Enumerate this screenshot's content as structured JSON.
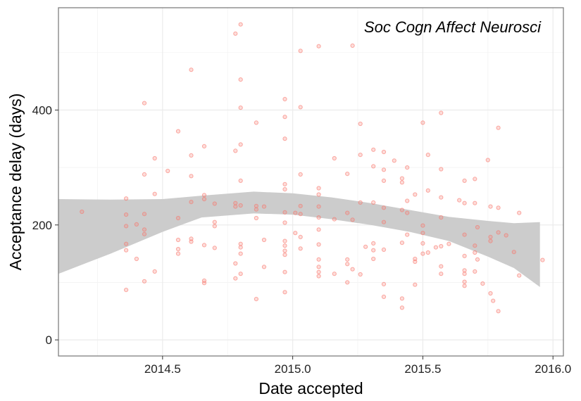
{
  "chart_data": {
    "type": "scatter",
    "title": "",
    "annotation": "Soc Cogn Affect Neurosci",
    "xlabel": "Date accepted",
    "ylabel": "Acceptance delay (days)",
    "xlim": [
      2014.1,
      2016.04
    ],
    "ylim": [
      -28,
      578
    ],
    "x_ticks": [
      2014.5,
      2015.0,
      2015.5,
      2016.0
    ],
    "x_tick_labels": [
      "2014.5",
      "2015.0",
      "2015.5",
      "2016.0"
    ],
    "y_ticks": [
      0,
      200,
      400
    ],
    "y_tick_labels": [
      "0",
      "200",
      "400"
    ],
    "grid": true,
    "point_color": "#F8766D",
    "band_color": "#cccccc",
    "points": [
      [
        2014.19,
        223
      ],
      [
        2014.36,
        246
      ],
      [
        2014.36,
        218
      ],
      [
        2014.36,
        198
      ],
      [
        2014.36,
        167
      ],
      [
        2014.36,
        156
      ],
      [
        2014.36,
        87
      ],
      [
        2014.4,
        201
      ],
      [
        2014.4,
        141
      ],
      [
        2014.43,
        412
      ],
      [
        2014.43,
        288
      ],
      [
        2014.43,
        219
      ],
      [
        2014.43,
        192
      ],
      [
        2014.43,
        184
      ],
      [
        2014.43,
        102
      ],
      [
        2014.47,
        316
      ],
      [
        2014.47,
        254
      ],
      [
        2014.47,
        119
      ],
      [
        2014.52,
        294
      ],
      [
        2014.56,
        363
      ],
      [
        2014.56,
        212
      ],
      [
        2014.56,
        174
      ],
      [
        2014.56,
        158
      ],
      [
        2014.56,
        150
      ],
      [
        2014.61,
        470
      ],
      [
        2014.61,
        321
      ],
      [
        2014.61,
        285
      ],
      [
        2014.61,
        240
      ],
      [
        2014.61,
        176
      ],
      [
        2014.61,
        171
      ],
      [
        2014.66,
        337
      ],
      [
        2014.66,
        252
      ],
      [
        2014.66,
        245
      ],
      [
        2014.66,
        165
      ],
      [
        2014.66,
        103
      ],
      [
        2014.66,
        99
      ],
      [
        2014.7,
        237
      ],
      [
        2014.7,
        205
      ],
      [
        2014.7,
        198
      ],
      [
        2014.7,
        160
      ],
      [
        2014.78,
        533
      ],
      [
        2014.78,
        329
      ],
      [
        2014.78,
        238
      ],
      [
        2014.78,
        232
      ],
      [
        2014.78,
        133
      ],
      [
        2014.78,
        107
      ],
      [
        2014.8,
        549
      ],
      [
        2014.8,
        453
      ],
      [
        2014.8,
        404
      ],
      [
        2014.8,
        340
      ],
      [
        2014.8,
        277
      ],
      [
        2014.8,
        234
      ],
      [
        2014.8,
        167
      ],
      [
        2014.8,
        161
      ],
      [
        2014.8,
        150
      ],
      [
        2014.8,
        115
      ],
      [
        2014.86,
        378
      ],
      [
        2014.86,
        233
      ],
      [
        2014.86,
        227
      ],
      [
        2014.86,
        212
      ],
      [
        2014.86,
        71
      ],
      [
        2014.89,
        232
      ],
      [
        2014.89,
        174
      ],
      [
        2014.89,
        127
      ],
      [
        2014.97,
        419
      ],
      [
        2014.97,
        388
      ],
      [
        2014.97,
        350
      ],
      [
        2014.97,
        271
      ],
      [
        2014.97,
        262
      ],
      [
        2014.97,
        222
      ],
      [
        2014.97,
        204
      ],
      [
        2014.97,
        172
      ],
      [
        2014.97,
        164
      ],
      [
        2014.97,
        155
      ],
      [
        2014.97,
        148
      ],
      [
        2014.97,
        118
      ],
      [
        2014.97,
        83
      ],
      [
        2015.01,
        221
      ],
      [
        2015.01,
        186
      ],
      [
        2015.03,
        503
      ],
      [
        2015.03,
        405
      ],
      [
        2015.03,
        288
      ],
      [
        2015.03,
        233
      ],
      [
        2015.03,
        219
      ],
      [
        2015.03,
        179
      ],
      [
        2015.03,
        159
      ],
      [
        2015.1,
        511
      ],
      [
        2015.1,
        264
      ],
      [
        2015.1,
        253
      ],
      [
        2015.1,
        232
      ],
      [
        2015.1,
        213
      ],
      [
        2015.1,
        192
      ],
      [
        2015.1,
        166
      ],
      [
        2015.1,
        140
      ],
      [
        2015.1,
        127
      ],
      [
        2015.1,
        118
      ],
      [
        2015.1,
        111
      ],
      [
        2015.16,
        316
      ],
      [
        2015.16,
        210
      ],
      [
        2015.16,
        115
      ],
      [
        2015.21,
        289
      ],
      [
        2015.21,
        221
      ],
      [
        2015.21,
        140
      ],
      [
        2015.21,
        132
      ],
      [
        2015.21,
        100
      ],
      [
        2015.23,
        512
      ],
      [
        2015.23,
        209
      ],
      [
        2015.23,
        123
      ],
      [
        2015.26,
        376
      ],
      [
        2015.26,
        322
      ],
      [
        2015.26,
        239
      ],
      [
        2015.26,
        114
      ],
      [
        2015.28,
        162
      ],
      [
        2015.31,
        331
      ],
      [
        2015.31,
        302
      ],
      [
        2015.31,
        239
      ],
      [
        2015.31,
        168
      ],
      [
        2015.31,
        156
      ],
      [
        2015.31,
        141
      ],
      [
        2015.35,
        327
      ],
      [
        2015.35,
        296
      ],
      [
        2015.35,
        277
      ],
      [
        2015.35,
        230
      ],
      [
        2015.35,
        205
      ],
      [
        2015.35,
        157
      ],
      [
        2015.35,
        97
      ],
      [
        2015.35,
        75
      ],
      [
        2015.39,
        312
      ],
      [
        2015.42,
        281
      ],
      [
        2015.42,
        274
      ],
      [
        2015.42,
        226
      ],
      [
        2015.42,
        169
      ],
      [
        2015.42,
        72
      ],
      [
        2015.42,
        56
      ],
      [
        2015.44,
        300
      ],
      [
        2015.44,
        242
      ],
      [
        2015.44,
        221
      ],
      [
        2015.44,
        183
      ],
      [
        2015.47,
        253
      ],
      [
        2015.47,
        141
      ],
      [
        2015.47,
        136
      ],
      [
        2015.47,
        96
      ],
      [
        2015.5,
        378
      ],
      [
        2015.5,
        199
      ],
      [
        2015.5,
        186
      ],
      [
        2015.5,
        168
      ],
      [
        2015.5,
        150
      ],
      [
        2015.52,
        322
      ],
      [
        2015.52,
        260
      ],
      [
        2015.52,
        152
      ],
      [
        2015.55,
        161
      ],
      [
        2015.57,
        395
      ],
      [
        2015.57,
        297
      ],
      [
        2015.57,
        248
      ],
      [
        2015.57,
        213
      ],
      [
        2015.57,
        163
      ],
      [
        2015.57,
        128
      ],
      [
        2015.57,
        115
      ],
      [
        2015.6,
        167
      ],
      [
        2015.64,
        243
      ],
      [
        2015.66,
        277
      ],
      [
        2015.66,
        238
      ],
      [
        2015.66,
        183
      ],
      [
        2015.66,
        146
      ],
      [
        2015.66,
        121
      ],
      [
        2015.66,
        115
      ],
      [
        2015.66,
        101
      ],
      [
        2015.66,
        94
      ],
      [
        2015.7,
        280
      ],
      [
        2015.7,
        238
      ],
      [
        2015.7,
        164
      ],
      [
        2015.7,
        152
      ],
      [
        2015.7,
        119
      ],
      [
        2015.71,
        140
      ],
      [
        2015.71,
        196
      ],
      [
        2015.73,
        98
      ],
      [
        2015.75,
        313
      ],
      [
        2015.76,
        232
      ],
      [
        2015.76,
        179
      ],
      [
        2015.76,
        172
      ],
      [
        2015.76,
        81
      ],
      [
        2015.77,
        68
      ],
      [
        2015.79,
        369
      ],
      [
        2015.79,
        230
      ],
      [
        2015.79,
        187
      ],
      [
        2015.79,
        50
      ],
      [
        2015.82,
        182
      ],
      [
        2015.85,
        153
      ],
      [
        2015.87,
        221
      ],
      [
        2015.87,
        112
      ],
      [
        2015.96,
        139
      ]
    ],
    "smooth_band": [
      {
        "x": 2014.1,
        "lower": 115,
        "upper": 245
      },
      {
        "x": 2014.3,
        "lower": 150,
        "upper": 244
      },
      {
        "x": 2014.5,
        "lower": 188,
        "upper": 245
      },
      {
        "x": 2014.65,
        "lower": 213,
        "upper": 251
      },
      {
        "x": 2014.85,
        "lower": 220,
        "upper": 258
      },
      {
        "x": 2015.0,
        "lower": 218,
        "upper": 255
      },
      {
        "x": 2015.15,
        "lower": 210,
        "upper": 248
      },
      {
        "x": 2015.3,
        "lower": 200,
        "upper": 238
      },
      {
        "x": 2015.45,
        "lower": 188,
        "upper": 226
      },
      {
        "x": 2015.6,
        "lower": 172,
        "upper": 214
      },
      {
        "x": 2015.75,
        "lower": 145,
        "upper": 207
      },
      {
        "x": 2015.85,
        "lower": 125,
        "upper": 203
      },
      {
        "x": 2015.95,
        "lower": 92,
        "upper": 205
      }
    ]
  }
}
